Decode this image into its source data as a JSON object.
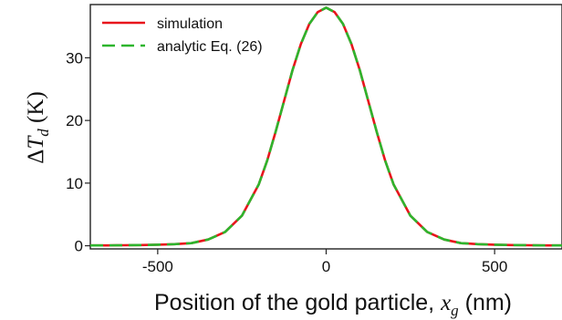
{
  "chart_data": {
    "type": "line",
    "xlabel": {
      "prefix": "Position of the gold particle, ",
      "var": "x",
      "sub": "g",
      "suffix": " (nm)"
    },
    "ylabel": {
      "delta": "Δ",
      "var": "T",
      "sub": "d",
      "suffix": " (K)"
    },
    "xlim": [
      -700,
      700
    ],
    "ylim": [
      -0.5,
      38.5
    ],
    "xticks": [
      -500,
      0,
      500
    ],
    "xtick_labels": [
      "-500",
      "0",
      "500"
    ],
    "yticks": [
      0,
      10,
      20,
      30
    ],
    "ytick_labels": [
      "0",
      "10",
      "20",
      "30"
    ],
    "grid": false,
    "legend_position": "top-left",
    "series": [
      {
        "name": "simulation",
        "style": "solid",
        "color": "#e8151c",
        "x": [
          -700,
          -650,
          -600,
          -550,
          -500,
          -450,
          -400,
          -350,
          -300,
          -250,
          -200,
          -175,
          -150,
          -125,
          -100,
          -75,
          -50,
          -25,
          0,
          25,
          50,
          75,
          100,
          125,
          150,
          175,
          200,
          250,
          300,
          350,
          400,
          450,
          500,
          550,
          600,
          650,
          700
        ],
        "y": [
          0.05,
          0.06,
          0.08,
          0.11,
          0.16,
          0.25,
          0.42,
          1.0,
          2.2,
          4.8,
          9.8,
          13.6,
          18.2,
          23.1,
          28.0,
          32.2,
          35.4,
          37.3,
          38.0,
          37.3,
          35.4,
          32.2,
          28.0,
          23.1,
          18.2,
          13.6,
          9.8,
          4.8,
          2.2,
          1.0,
          0.42,
          0.25,
          0.16,
          0.11,
          0.08,
          0.06,
          0.05
        ]
      },
      {
        "name": "analytic Eq. (26)",
        "style": "dashed",
        "color": "#2db52d",
        "x": [
          -700,
          -650,
          -600,
          -550,
          -500,
          -450,
          -400,
          -350,
          -300,
          -250,
          -200,
          -175,
          -150,
          -125,
          -100,
          -75,
          -50,
          -25,
          0,
          25,
          50,
          75,
          100,
          125,
          150,
          175,
          200,
          250,
          300,
          350,
          400,
          450,
          500,
          550,
          600,
          650,
          700
        ],
        "y": [
          0.05,
          0.06,
          0.08,
          0.11,
          0.16,
          0.25,
          0.42,
          1.0,
          2.2,
          4.8,
          9.8,
          13.6,
          18.2,
          23.1,
          28.0,
          32.2,
          35.4,
          37.3,
          38.0,
          37.3,
          35.4,
          32.2,
          28.0,
          23.1,
          18.2,
          13.6,
          9.8,
          4.8,
          2.2,
          1.0,
          0.42,
          0.25,
          0.16,
          0.11,
          0.08,
          0.06,
          0.05
        ]
      }
    ]
  }
}
